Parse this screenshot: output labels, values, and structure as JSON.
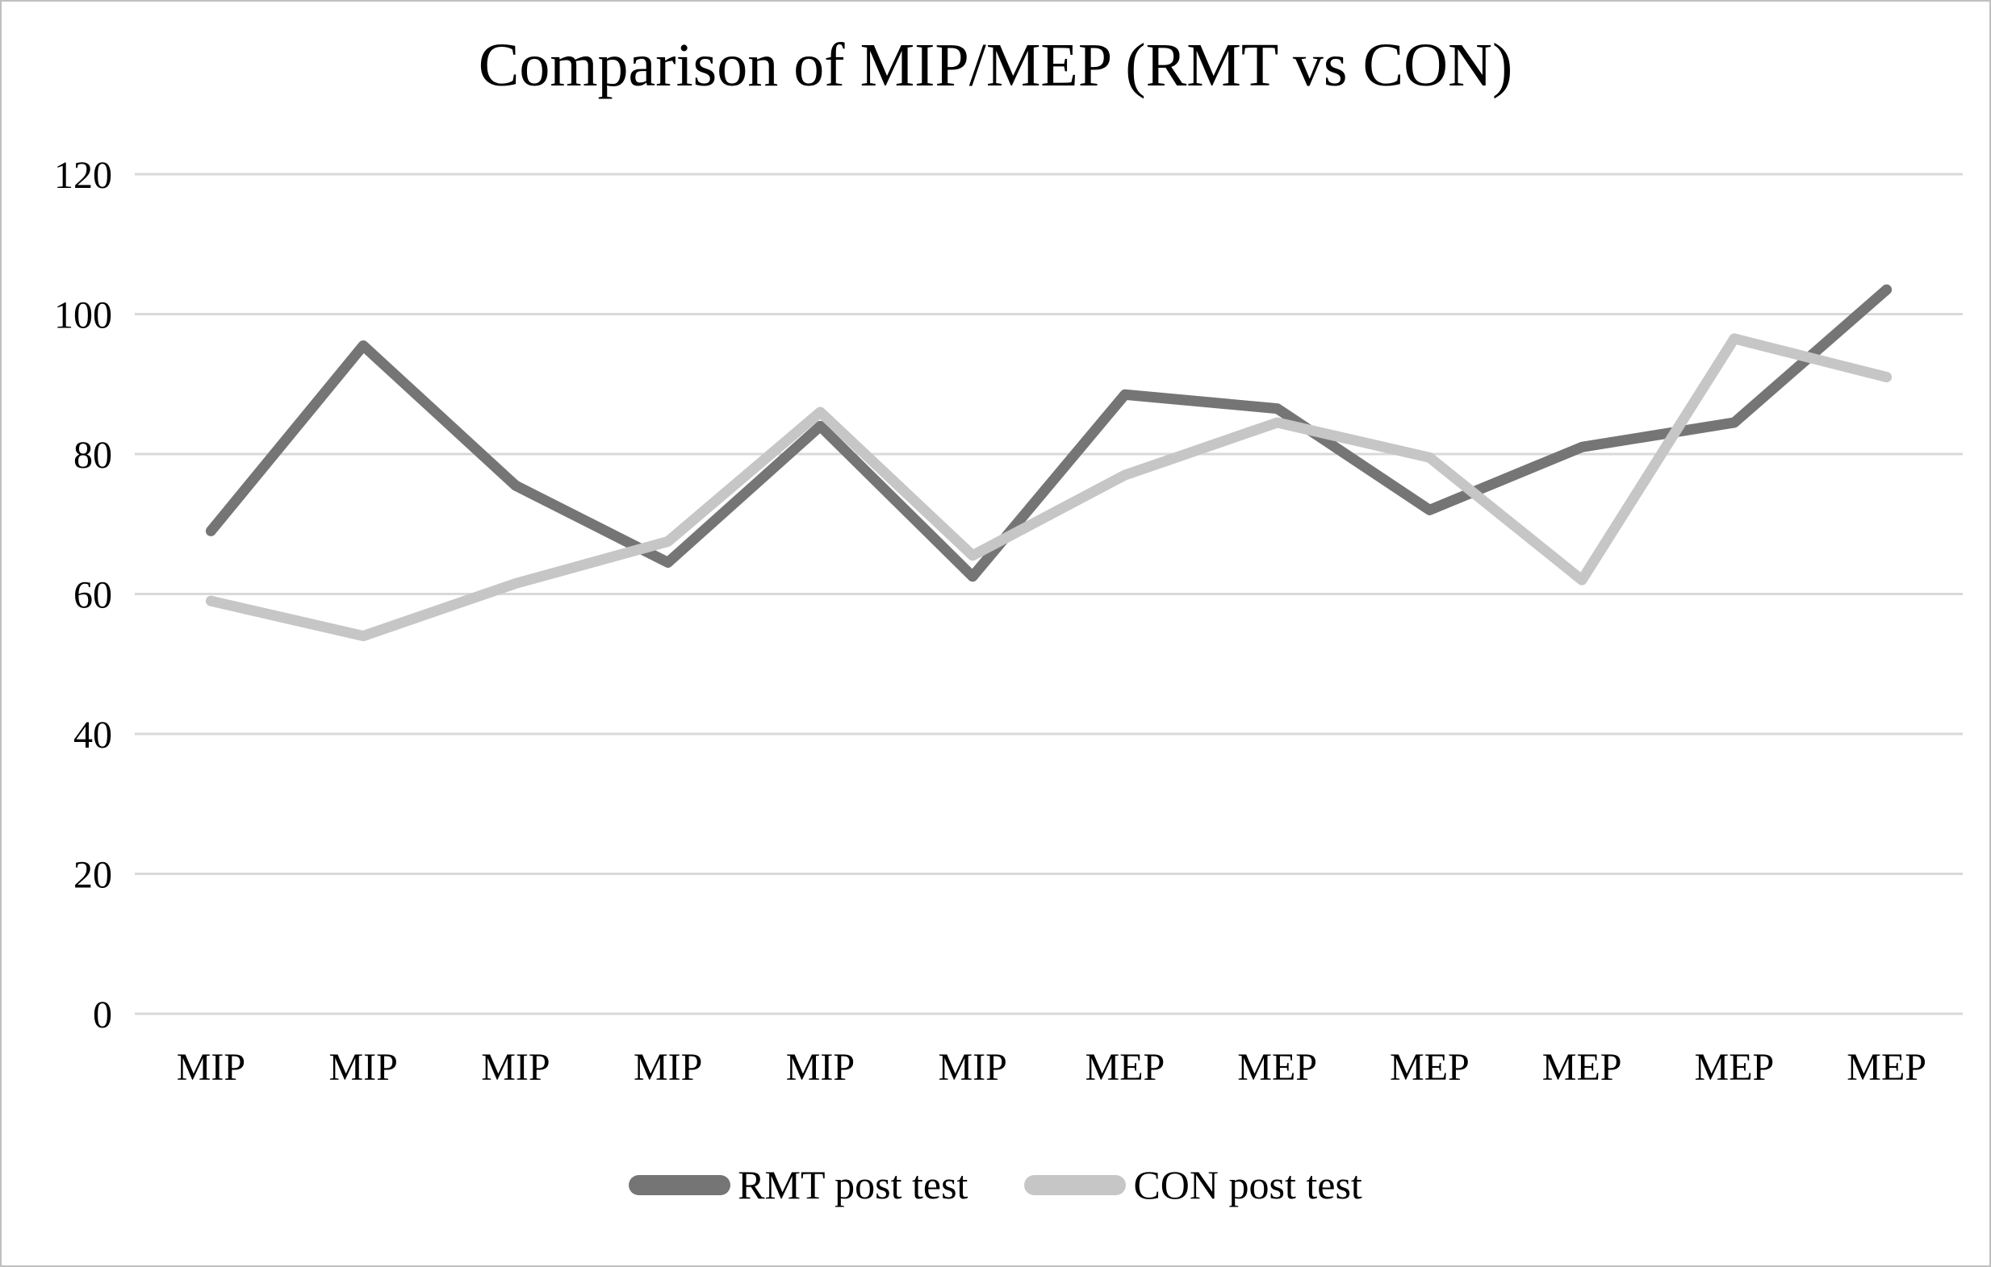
{
  "chart_data": {
    "type": "line",
    "title": "Comparison of MIP/MEP (RMT vs CON)",
    "categories": [
      "MIP",
      "MIP",
      "MIP",
      "MIP",
      "MIP",
      "MIP",
      "MEP",
      "MEP",
      "MEP",
      "MEP",
      "MEP",
      "MEP"
    ],
    "series": [
      {
        "name": "RMT post test",
        "color": "#757575",
        "values": [
          69,
          95.5,
          75.5,
          64.5,
          84,
          62.5,
          88.5,
          86.5,
          72,
          81,
          84.5,
          103.5
        ]
      },
      {
        "name": "CON post test",
        "color": "#c6c6c6",
        "values": [
          59,
          54,
          61.5,
          67.5,
          86,
          65.5,
          77,
          84.5,
          79.5,
          62,
          96.5,
          91
        ]
      }
    ],
    "yticks": [
      0,
      20,
      40,
      60,
      80,
      100,
      120
    ],
    "ylim": [
      0,
      120
    ],
    "xlabel": "",
    "ylabel": "",
    "grid": "horizontal",
    "gridline_color": "#d9d9d9",
    "axis_text_color": "#000000",
    "legend_position": "bottom"
  }
}
